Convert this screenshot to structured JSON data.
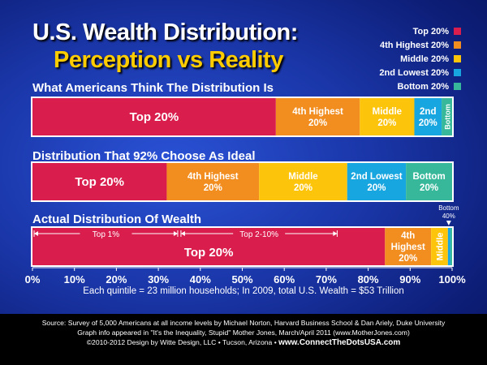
{
  "title": {
    "line1": "U.S. Wealth Distribution:",
    "line2": "Perception vs Reality"
  },
  "legend": [
    {
      "label": "Top 20%",
      "color": "#d91e4e"
    },
    {
      "label": "4th Highest 20%",
      "color": "#f28d1f"
    },
    {
      "label": "Middle 20%",
      "color": "#fdc40c"
    },
    {
      "label": "2nd Lowest 20%",
      "color": "#18a6e0"
    },
    {
      "label": "Bottom 20%",
      "color": "#37b89a"
    }
  ],
  "chart_data": {
    "type": "bar",
    "orientation": "horizontal",
    "stacked": true,
    "xlim": [
      0,
      100
    ],
    "x_ticks": [
      "0%",
      "10%",
      "20%",
      "30%",
      "40%",
      "50%",
      "60%",
      "70%",
      "80%",
      "90%",
      "100%"
    ],
    "series_names": [
      "Top 20%",
      "4th Highest 20%",
      "Middle 20%",
      "2nd Lowest 20%",
      "Bottom 20%"
    ],
    "colors": [
      "#d91e4e",
      "#f28d1f",
      "#fdc40c",
      "#18a6e0",
      "#37b89a"
    ],
    "rows": [
      {
        "label": "What Americans Think The Distribution Is",
        "values": [
          58,
          20,
          13,
          6.5,
          2.5
        ],
        "segment_labels": [
          "Top 20%",
          "4th Highest 20%",
          "Middle 20%",
          "2nd 20%",
          "Bottom"
        ]
      },
      {
        "label": "Distribution That 92% Choose As Ideal",
        "values": [
          32,
          22,
          21,
          14,
          11
        ],
        "segment_labels": [
          "Top 20%",
          "4th Highest 20%",
          "Middle 20%",
          "2nd Lowest 20%",
          "Bottom 20%"
        ]
      },
      {
        "label": "Actual Distribution Of Wealth",
        "values": [
          84,
          11,
          4,
          0.6,
          0.4
        ],
        "segment_labels": [
          "Top 20%",
          "4th Highest 20%",
          "Middle",
          "",
          ""
        ],
        "callout": "Bottom 40%",
        "brackets": [
          {
            "label": "Top 1%",
            "from": 0,
            "to": 35
          },
          {
            "label": "Top 2-10%",
            "from": 35,
            "to": 73
          }
        ]
      }
    ]
  },
  "note": "Each quintile = 23 million households; In 2009, total U.S. Wealth = $53 Trillion",
  "footer": {
    "line1": "Source: Survey of 5,000 Americans at all income levels by Michael Norton, Harvard Business School & Dan Ariely, Duke University",
    "line2": "Graph info appeared in \"It's the Inequality, Stupid\" Mother Jones, March/April 2011 (www.MotherJones.com)",
    "line3_prefix": "©2010-2012 Design by Witte Design, LLC • Tucson, Arizona • ",
    "line3_url": "www.ConnectTheDotsUSA.com"
  }
}
